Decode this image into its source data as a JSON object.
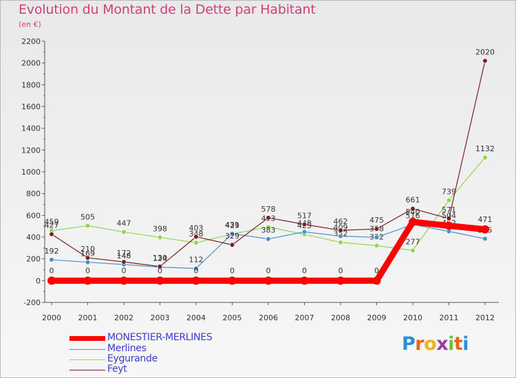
{
  "title": "Evolution du Montant de la Dette par Habitant",
  "subtitle": "(en €)",
  "chart_data": {
    "type": "line",
    "title": "Evolution du Montant de la Dette par Habitant",
    "ylabel": "(en €)",
    "xlabel": "",
    "x": [
      "2000",
      "2001",
      "2002",
      "2003",
      "2004",
      "2005",
      "2006",
      "2007",
      "2008",
      "2009",
      "2010",
      "2011",
      "2012"
    ],
    "ylim": [
      -200,
      2200
    ],
    "yticks": [
      -200,
      0,
      200,
      400,
      600,
      800,
      1000,
      1200,
      1400,
      1600,
      1800,
      2000,
      2200
    ],
    "grid": false,
    "legend_position": "bottom-left",
    "series": [
      {
        "name": "Eygurande",
        "color": "#8fd651",
        "values": [
          459,
          505,
          447,
          398,
          348,
          429,
          493,
          425,
          352,
          322,
          277,
          739,
          1132
        ],
        "labels": [
          "459",
          "505",
          "447",
          "398",
          "348",
          "429",
          "493",
          "425",
          "352",
          "322",
          "277",
          "739",
          "1132"
        ]
      },
      {
        "name": "Merlines",
        "color": "#4b8fd0",
        "values": [
          192,
          169,
          148,
          124,
          112,
          431,
          383,
          448,
          409,
          398,
          516,
          452,
          385
        ],
        "labels": [
          "192",
          "169",
          "148",
          "124",
          "112",
          "431",
          "383",
          "448",
          "409",
          "398",
          "516",
          "452",
          "385"
        ]
      },
      {
        "name": "Feyt",
        "color": "#7a2020",
        "values": [
          427,
          210,
          172,
          130,
          403,
          329,
          578,
          517,
          462,
          475,
          661,
          571,
          2020
        ],
        "labels": [
          "427",
          "210",
          "172",
          "130",
          "403",
          "329",
          "578",
          "517",
          "462",
          "475",
          "661",
          "571",
          "2020"
        ]
      },
      {
        "name": "MONESTIER-MERLINES",
        "color": "#ff0000",
        "values": [
          0,
          0,
          0,
          0,
          0,
          0,
          0,
          0,
          0,
          0,
          540,
          504,
          471
        ],
        "labels": [
          "0",
          "0",
          "0",
          "0",
          "0",
          "0",
          "0",
          "0",
          "0",
          "0",
          "540",
          "504",
          "471"
        ]
      }
    ]
  },
  "legend": [
    {
      "name": "MONESTIER-MERLINES",
      "color": "#ff0000"
    },
    {
      "name": "Merlines",
      "color": "#4b8fd0"
    },
    {
      "name": "Eygurande",
      "color": "#8fd651"
    },
    {
      "name": "Feyt",
      "color": "#7a2020"
    }
  ],
  "logo": {
    "letters": [
      "P",
      "r",
      "o",
      "x",
      "i",
      "t",
      "i"
    ],
    "colors": [
      "#2e8fd8",
      "#e6641e",
      "#f2b21b",
      "#9b3ba8",
      "#6fbf3a",
      "#e6641e",
      "#2e8fd8"
    ]
  }
}
